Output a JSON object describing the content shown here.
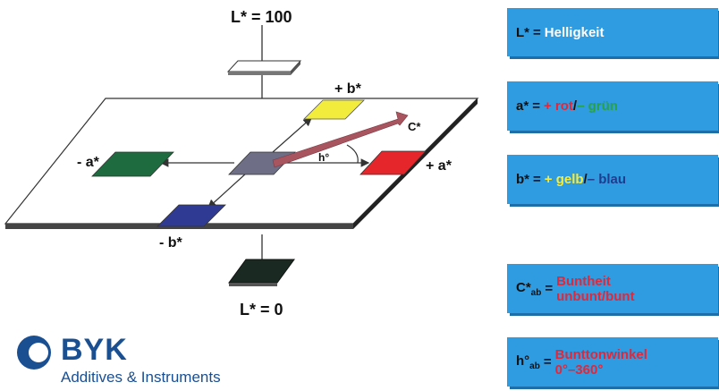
{
  "diagram": {
    "labels": {
      "l_top": "L* = 100",
      "l_bottom": "L* = 0",
      "plus_b": "+ b*",
      "minus_b": "- b*",
      "minus_a": "- a*",
      "plus_a": "+ a*",
      "chroma": "C*",
      "hue": "h°"
    },
    "colors": {
      "white_patch": "#ffffff",
      "yellow_patch": "#f2ec3c",
      "green_patch": "#1e6b3f",
      "red_patch": "#e5262b",
      "blue_patch": "#2f3a92",
      "gray_patch": "#6e6f86",
      "black_patch": "#1a2a22",
      "chroma_arrow": "#a9555f"
    }
  },
  "legend": {
    "lightness": {
      "symbol": "L*",
      "eq": "=",
      "text": "Helligkeit"
    },
    "a_axis": {
      "symbol": "a*",
      "eq": "=",
      "plus": "+ rot",
      "sep": "/",
      "minus": "– grün"
    },
    "b_axis": {
      "symbol": "b*",
      "eq": "=",
      "plus": "+ gelb",
      "sep": "/",
      "minus": "– blau"
    },
    "chroma": {
      "symbol": "C*",
      "sub": "ab",
      "eq": "=",
      "line1": "Buntheit",
      "line2": "unbunt/bunt"
    },
    "hue": {
      "symbol": "h°",
      "sub": "ab",
      "eq": "=",
      "line1": "Bunttonwinkel",
      "line2": "0°–360°"
    },
    "box_color": "#2f9be1"
  },
  "logo": {
    "brand": "BYK",
    "tagline": "Additives & Instruments",
    "color": "#1a4f92"
  }
}
